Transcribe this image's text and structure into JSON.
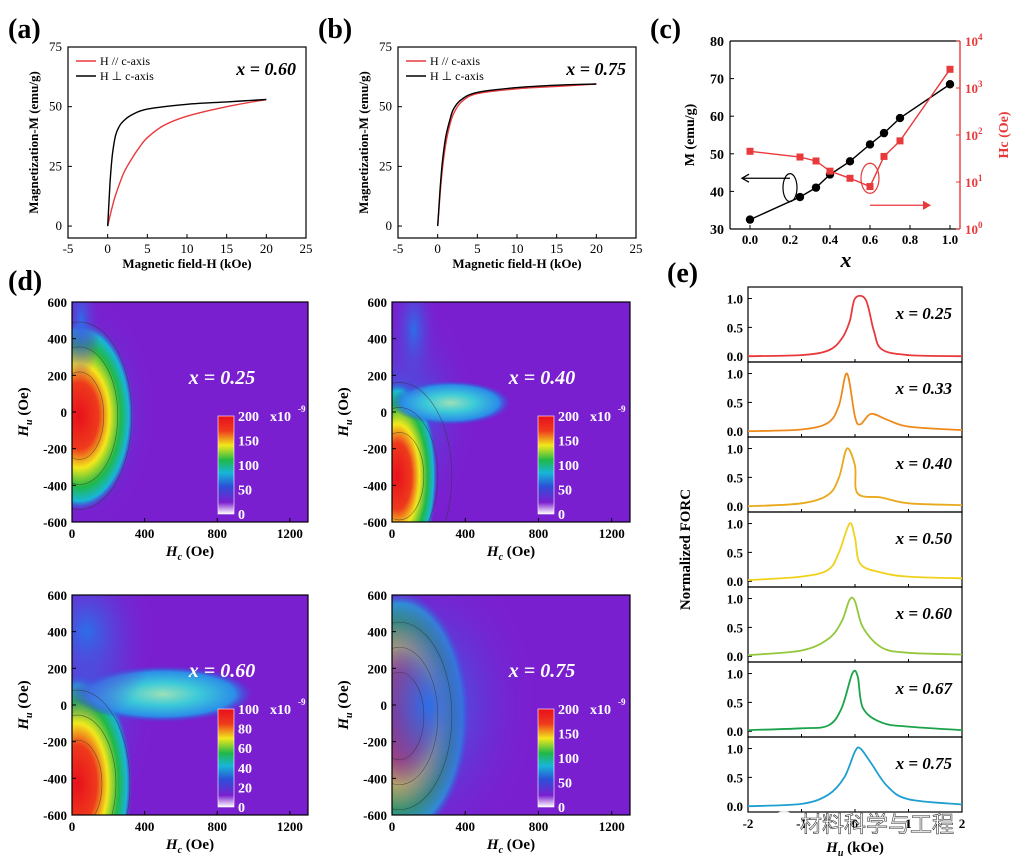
{
  "panel_labels": {
    "a": "(a)",
    "b": "(b)",
    "c": "(c)",
    "d": "(d)",
    "e": "(e)"
  },
  "watermark": "材料科学与工程",
  "colors": {
    "red": "#e8393b",
    "black": "#000000",
    "purple": "#7a1fcf"
  },
  "chart_data": [
    {
      "id": "a",
      "type": "line",
      "title": "x = 0.60",
      "xlabel": "Magnetic field-H (kOe)",
      "ylabel": "Magnetization-M (emu/g)",
      "xlim": [
        -5,
        25
      ],
      "ylim": [
        -5,
        75
      ],
      "xticks": [
        "-5",
        "0",
        "5",
        "10",
        "15",
        "20",
        "25"
      ],
      "yticks": [
        "0",
        "25",
        "50",
        "75"
      ],
      "legend": [
        "H // c-axis",
        "H ⊥ c-axis"
      ],
      "legend_position": "top-left",
      "series": [
        {
          "name": "H // c-axis",
          "color": "#e8393b",
          "x": [
            0,
            0.5,
            1,
            2,
            3,
            4,
            5,
            7,
            10,
            15,
            20
          ],
          "y": [
            0,
            7,
            13,
            22,
            28,
            33,
            37,
            42,
            46,
            50,
            53
          ]
        },
        {
          "name": "H ⊥ c-axis",
          "color": "#000000",
          "x": [
            0,
            0.3,
            0.6,
            1,
            1.5,
            2,
            3,
            5,
            10,
            15,
            20
          ],
          "y": [
            0,
            18,
            30,
            38,
            42,
            44,
            46.5,
            49,
            51,
            52,
            53
          ]
        }
      ]
    },
    {
      "id": "b",
      "type": "line",
      "title": "x = 0.75",
      "xlabel": "Magnetic field-H (kOe)",
      "ylabel": "Magnetization-M (emu/g)",
      "xlim": [
        -5,
        25
      ],
      "ylim": [
        -5,
        75
      ],
      "xticks": [
        "-5",
        "0",
        "5",
        "10",
        "15",
        "20",
        "25"
      ],
      "yticks": [
        "0",
        "25",
        "50",
        "75"
      ],
      "legend": [
        "H // c-axis",
        "H ⊥ c-axis"
      ],
      "legend_position": "top-left",
      "series": [
        {
          "name": "H // c-axis",
          "color": "#e8393b",
          "x": [
            0,
            0.3,
            0.6,
            1,
            1.5,
            2,
            3,
            5,
            10,
            15,
            20
          ],
          "y": [
            0,
            13,
            24,
            34,
            42,
            47,
            52,
            55.5,
            57.5,
            58.5,
            59.5
          ]
        },
        {
          "name": "H ⊥ c-axis",
          "color": "#000000",
          "x": [
            0,
            0.3,
            0.6,
            1,
            1.5,
            2,
            3,
            5,
            10,
            15,
            20
          ],
          "y": [
            0,
            15,
            27,
            37,
            44,
            49,
            53,
            56,
            58,
            59,
            59.5
          ]
        }
      ]
    },
    {
      "id": "c",
      "type": "scatter",
      "xlabel": "x",
      "ylabel": "M (emu/g)",
      "y2label": "Hc (Oe)",
      "xlim": [
        -0.1,
        1.05
      ],
      "ylim": [
        30,
        80
      ],
      "y2lim_log10": [
        0,
        4
      ],
      "xticks": [
        "0.0",
        "0.2",
        "0.4",
        "0.6",
        "0.8",
        "1.0"
      ],
      "yticks": [
        "30",
        "40",
        "50",
        "60",
        "70",
        "80"
      ],
      "y2ticks": [
        "10^0",
        "10^1",
        "10^2",
        "10^3",
        "10^4"
      ],
      "series": [
        {
          "name": "M",
          "color": "#000000",
          "x": [
            0,
            0.25,
            0.33,
            0.4,
            0.5,
            0.6,
            0.67,
            0.75,
            1.0
          ],
          "y": [
            32.5,
            38.5,
            41,
            44.5,
            48,
            52.5,
            55.5,
            59.5,
            68.5
          ]
        },
        {
          "name": "Hc",
          "color": "#e8393b",
          "x": [
            0,
            0.25,
            0.33,
            0.4,
            0.5,
            0.6,
            0.67,
            0.75,
            1.0
          ],
          "y": [
            45,
            34,
            28,
            17,
            12,
            8,
            35,
            75,
            2500
          ]
        }
      ]
    },
    {
      "id": "d",
      "type": "heatmap",
      "xlabel": "Hc (Oe)",
      "ylabel": "Hu (Oe)",
      "xlim": [
        0,
        1300
      ],
      "ylim": [
        -600,
        600
      ],
      "xticks": [
        "0",
        "400",
        "800",
        "1200"
      ],
      "yticks": [
        "-600",
        "-400",
        "-200",
        "0",
        "200",
        "400",
        "600"
      ],
      "subplots": [
        {
          "label": "x = 0.25",
          "colorbar_max": "200",
          "colorbar_ticks": [
            "0",
            "50",
            "100",
            "150",
            "200"
          ],
          "unit": "x10-9"
        },
        {
          "label": "x = 0.40",
          "colorbar_max": "200",
          "colorbar_ticks": [
            "0",
            "50",
            "100",
            "150",
            "200"
          ],
          "unit": "x10-9"
        },
        {
          "label": "x = 0.60",
          "colorbar_max": "100",
          "colorbar_ticks": [
            "0",
            "20",
            "40",
            "60",
            "80",
            "100"
          ],
          "unit": "x10-9"
        },
        {
          "label": "x = 0.75",
          "colorbar_max": "200",
          "colorbar_ticks": [
            "0",
            "50",
            "100",
            "150",
            "200"
          ],
          "unit": "x10-9"
        }
      ]
    },
    {
      "id": "e",
      "type": "line",
      "xlabel": "Hu (kOe)",
      "ylabel": "Normalized FORC",
      "xlim": [
        -2,
        2
      ],
      "ylim": [
        -0.1,
        1.2
      ],
      "xticks": [
        "-2",
        "-1",
        "0",
        "1",
        "2"
      ],
      "yticks": [
        "0.0",
        "0.5",
        "1.0"
      ],
      "series": [
        {
          "name": "x = 0.25",
          "color": "#e8393b",
          "x": [
            -2,
            -1,
            -0.5,
            -0.25,
            -0.1,
            0,
            0.2,
            0.35,
            0.5,
            1,
            2
          ],
          "y": [
            0,
            0.02,
            0.1,
            0.3,
            0.6,
            1.0,
            0.98,
            0.45,
            0.12,
            0.02,
            0
          ]
        },
        {
          "name": "x = 0.33",
          "color": "#ee8a1c",
          "x": [
            -2,
            -1,
            -0.5,
            -0.3,
            -0.15,
            0,
            0.1,
            0.3,
            0.6,
            1,
            2
          ],
          "y": [
            0,
            0.03,
            0.15,
            0.45,
            1.0,
            0.25,
            0.12,
            0.3,
            0.2,
            0.08,
            0.02
          ]
        },
        {
          "name": "x = 0.40",
          "color": "#e8a91c",
          "x": [
            -2,
            -1,
            -0.5,
            -0.3,
            -0.15,
            0,
            0.05,
            0.5,
            1,
            2
          ],
          "y": [
            0,
            0.05,
            0.2,
            0.5,
            1.0,
            0.7,
            0.22,
            0.15,
            0.05,
            0.02
          ]
        },
        {
          "name": "x = 0.50",
          "color": "#f0d21c",
          "x": [
            -2,
            -1,
            -0.5,
            -0.3,
            -0.1,
            0,
            0.1,
            0.5,
            1,
            2
          ],
          "y": [
            0.02,
            0.08,
            0.2,
            0.5,
            1.0,
            0.75,
            0.3,
            0.15,
            0.08,
            0.05
          ]
        },
        {
          "name": "x = 0.60",
          "color": "#94c83c",
          "x": [
            -2,
            -1,
            -0.5,
            -0.25,
            -0.1,
            0,
            0.15,
            0.5,
            1,
            2
          ],
          "y": [
            0.02,
            0.1,
            0.3,
            0.6,
            0.98,
            0.95,
            0.5,
            0.15,
            0.06,
            0.03
          ]
        },
        {
          "name": "x = 0.67",
          "color": "#1aa34a",
          "x": [
            -2,
            -1,
            -0.5,
            -0.25,
            -0.05,
            0.05,
            0.15,
            0.5,
            1,
            2
          ],
          "y": [
            0.02,
            0.05,
            0.1,
            0.4,
            1.0,
            0.95,
            0.4,
            0.15,
            0.08,
            0.02
          ]
        },
        {
          "name": "x = 0.75",
          "color": "#1f9ed0",
          "x": [
            -2,
            -1,
            -0.5,
            -0.2,
            0,
            0.1,
            0.3,
            0.6,
            1,
            2
          ],
          "y": [
            0,
            0.04,
            0.2,
            0.5,
            0.95,
            1.0,
            0.75,
            0.35,
            0.12,
            0.03
          ]
        }
      ]
    }
  ]
}
